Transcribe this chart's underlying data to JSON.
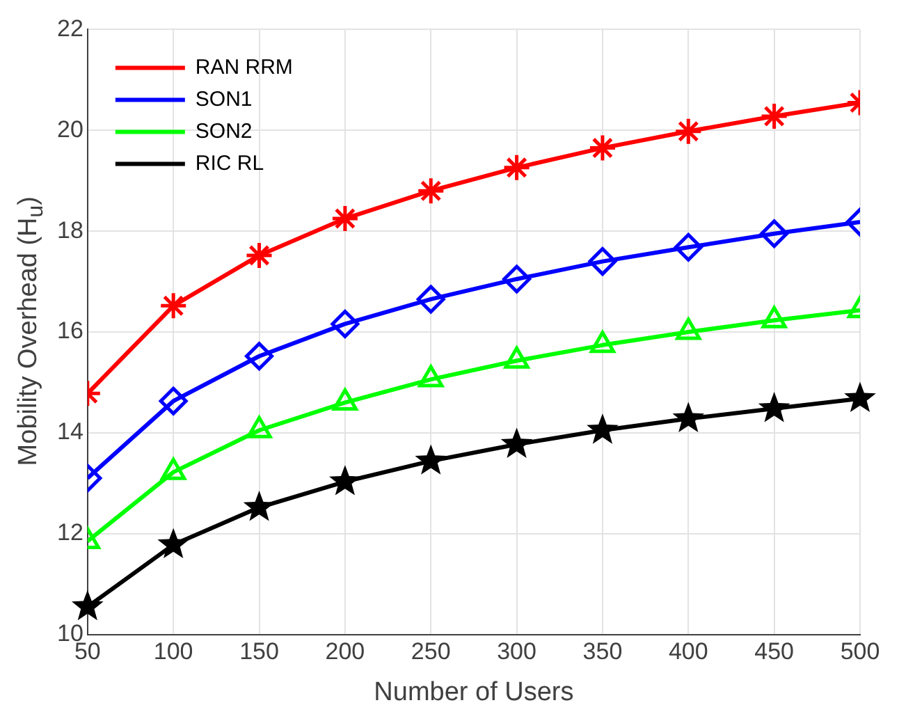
{
  "chart_data": {
    "type": "line",
    "xlabel": "Number of Users",
    "ylabel": "Mobility Overhead (H$_{u}$)",
    "x": [
      50,
      100,
      150,
      200,
      250,
      300,
      350,
      400,
      450,
      500
    ],
    "xlim": [
      50,
      500
    ],
    "xticks": [
      50,
      100,
      150,
      200,
      250,
      300,
      350,
      400,
      450,
      500
    ],
    "ylim": [
      10,
      22
    ],
    "yticks": [
      10,
      12,
      14,
      16,
      18,
      20,
      22
    ],
    "grid": true,
    "legend": "top left",
    "line_style": "solid",
    "series": [
      {
        "name": "RAN RRM",
        "color": "#ff0000",
        "marker": "cross",
        "values": [
          14.78,
          16.52,
          17.52,
          18.25,
          18.8,
          19.26,
          19.65,
          19.98,
          20.28,
          20.55
        ]
      },
      {
        "name": "SON1",
        "color": "#0000ff",
        "marker": "diamond",
        "values": [
          13.1,
          14.63,
          15.52,
          16.16,
          16.65,
          17.05,
          17.4,
          17.68,
          17.95,
          18.18
        ]
      },
      {
        "name": "SON2",
        "color": "#00ff00",
        "marker": "triangle",
        "values": [
          11.85,
          13.22,
          14.05,
          14.6,
          15.06,
          15.43,
          15.74,
          16.0,
          16.23,
          16.43
        ]
      },
      {
        "name": "RIC RL",
        "color": "#000000",
        "marker": "star",
        "values": [
          10.55,
          11.78,
          12.52,
          13.03,
          13.44,
          13.77,
          14.05,
          14.28,
          14.48,
          14.68
        ]
      }
    ]
  }
}
